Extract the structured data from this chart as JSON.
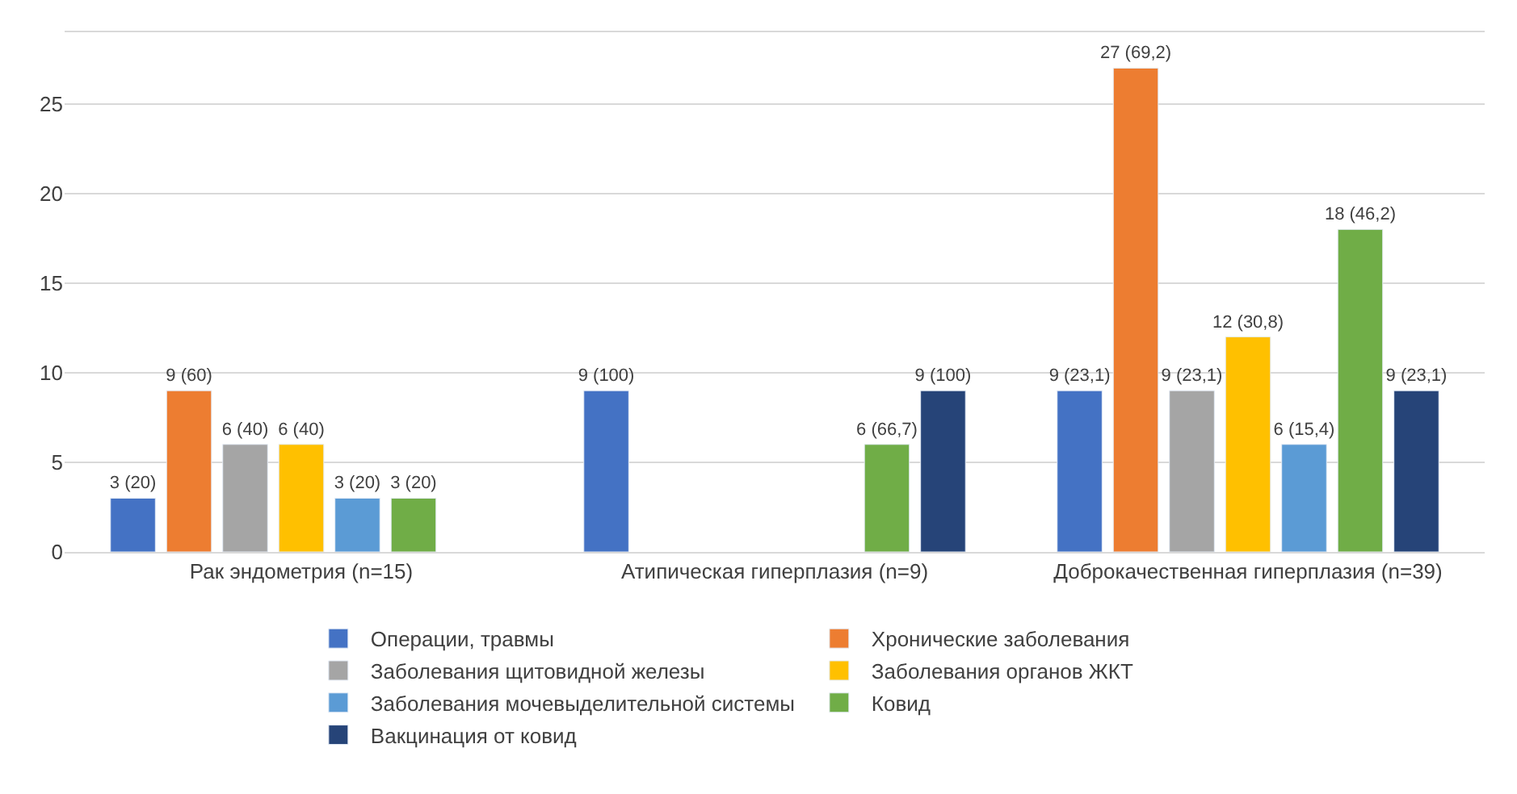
{
  "chart_data": {
    "type": "bar",
    "categories": [
      "Рак эндометрия (n=15)",
      "Атипическая гиперплазия (n=9)",
      "Доброкачественная гиперплазия (n=39)"
    ],
    "series": [
      {
        "name": "Операции, травмы",
        "color": "#4472c4",
        "values": [
          3,
          9,
          9
        ],
        "value_labels": [
          "3 (20)",
          "9 (100)",
          "9 (23,1)"
        ]
      },
      {
        "name": "Хронические заболевания",
        "color": "#ed7d31",
        "values": [
          9,
          null,
          27
        ],
        "value_labels": [
          "9 (60)",
          null,
          "27 (69,2)"
        ]
      },
      {
        "name": "Заболевания щитовидной железы",
        "color": "#a5a5a5",
        "values": [
          6,
          null,
          9
        ],
        "value_labels": [
          "6 (40)",
          null,
          "9 (23,1)"
        ]
      },
      {
        "name": "Заболевания органов ЖКТ",
        "color": "#ffc000",
        "values": [
          6,
          null,
          12
        ],
        "value_labels": [
          "6 (40)",
          null,
          "12 (30,8)"
        ]
      },
      {
        "name": "Заболевания мочевыделительной системы",
        "color": "#5b9bd5",
        "values": [
          3,
          null,
          6
        ],
        "value_labels": [
          "3 (20)",
          null,
          "6 (15,4)"
        ]
      },
      {
        "name": "Ковид",
        "color": "#70ad47",
        "values": [
          3,
          6,
          18
        ],
        "value_labels": [
          "3 (20)",
          "6 (66,7)",
          "18 (46,2)"
        ]
      },
      {
        "name": "Вакцинация от ковид",
        "color": "#264478",
        "values": [
          null,
          9,
          9
        ],
        "value_labels": [
          null,
          "9 (100)",
          "9 (23,1)"
        ]
      }
    ],
    "ylim": [
      0,
      29
    ],
    "yticks": [
      0,
      5,
      10,
      15,
      20,
      25
    ],
    "grid": "y",
    "legend": "bottom"
  }
}
